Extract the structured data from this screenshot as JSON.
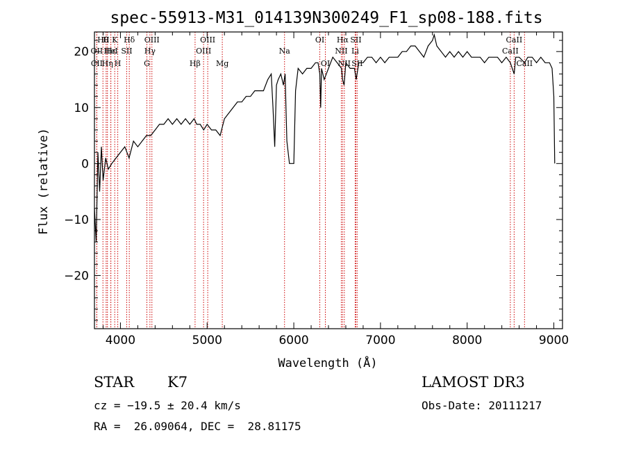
{
  "chart_data": {
    "type": "line",
    "title": "spec-55913-M31_014139N300249_F1_sp08-188.fits",
    "xlabel": "Wavelength (Å)",
    "ylabel": "Flux (relative)",
    "xlim": [
      3700,
      9100
    ],
    "ylim": [
      -29.5,
      23.5
    ],
    "xticks": [
      4000,
      5000,
      6000,
      7000,
      8000,
      9000
    ],
    "yticks": [
      -20,
      -10,
      0,
      10,
      20
    ],
    "spectrum": {
      "x": [
        3700,
        3720,
        3740,
        3760,
        3780,
        3800,
        3830,
        3860,
        3900,
        3950,
        4000,
        4050,
        4100,
        4150,
        4200,
        4250,
        4300,
        4350,
        4400,
        4450,
        4500,
        4550,
        4600,
        4650,
        4700,
        4750,
        4800,
        4850,
        4880,
        4920,
        4960,
        5000,
        5050,
        5100,
        5150,
        5200,
        5250,
        5300,
        5350,
        5400,
        5450,
        5500,
        5550,
        5600,
        5650,
        5700,
        5740,
        5760,
        5780,
        5800,
        5820,
        5850,
        5880,
        5900,
        5910,
        5920,
        5950,
        5960,
        5980,
        6000,
        6020,
        6050,
        6100,
        6150,
        6200,
        6250,
        6280,
        6300,
        6310,
        6320,
        6350,
        6400,
        6450,
        6500,
        6550,
        6563,
        6580,
        6600,
        6650,
        6700,
        6720,
        6750,
        6800,
        6850,
        6900,
        6950,
        7000,
        7050,
        7100,
        7150,
        7200,
        7250,
        7300,
        7350,
        7400,
        7450,
        7500,
        7550,
        7600,
        7620,
        7650,
        7700,
        7750,
        7800,
        7850,
        7900,
        7950,
        8000,
        8050,
        8100,
        8150,
        8200,
        8250,
        8300,
        8350,
        8400,
        8450,
        8498,
        8520,
        8542,
        8560,
        8600,
        8662,
        8700,
        8750,
        8800,
        8850,
        8900,
        8950,
        8980,
        9000,
        9010
      ],
      "y": [
        -8,
        -14,
        2,
        -5,
        3,
        -3,
        1,
        -1,
        0,
        1,
        2,
        3,
        1,
        4,
        3,
        4,
        5,
        5,
        6,
        7,
        7,
        8,
        7,
        8,
        7,
        8,
        7,
        8,
        7,
        7,
        6,
        7,
        6,
        6,
        5,
        8,
        9,
        10,
        11,
        11,
        12,
        12,
        13,
        13,
        13,
        15,
        16,
        10,
        3,
        14,
        15,
        16,
        14,
        16,
        10,
        4,
        0,
        0,
        0,
        0,
        13,
        17,
        16,
        17,
        17,
        18,
        18,
        16,
        10,
        17,
        15,
        17,
        19,
        18,
        17,
        15,
        14,
        18,
        17,
        17,
        15,
        18,
        18,
        19,
        19,
        18,
        19,
        18,
        19,
        19,
        19,
        20,
        20,
        21,
        21,
        20,
        19,
        21,
        22,
        23,
        21,
        20,
        19,
        20,
        19,
        20,
        19,
        20,
        19,
        19,
        19,
        18,
        19,
        19,
        19,
        18,
        19,
        18,
        17,
        16,
        19,
        19,
        18,
        19,
        19,
        18,
        19,
        18,
        18,
        17,
        12,
        0
      ]
    },
    "lines": [
      {
        "label": "Hθ",
        "wavelength": 3798,
        "row": 1
      },
      {
        "label": "OII",
        "wavelength": 3727,
        "row": 2
      },
      {
        "label": "CII",
        "wavelength": 3727,
        "row": 3
      },
      {
        "label": "H",
        "wavelength": 3835,
        "row": 1
      },
      {
        "label": "K",
        "wavelength": 3934,
        "row": 1
      },
      {
        "label": "Hε",
        "wavelength": 3889,
        "row": 2
      },
      {
        "label": "Hη",
        "wavelength": 3850,
        "row": 3
      },
      {
        "label": "HeI",
        "wavelength": 3889,
        "row": 2
      },
      {
        "label": "H",
        "wavelength": 3969,
        "row": 3
      },
      {
        "label": "Hδ",
        "wavelength": 4102,
        "row": 1
      },
      {
        "label": "SII",
        "wavelength": 4072,
        "row": 2
      },
      {
        "label": "OIII",
        "wavelength": 4363,
        "row": 1
      },
      {
        "label": "Hγ",
        "wavelength": 4340,
        "row": 2
      },
      {
        "label": "G",
        "wavelength": 4305,
        "row": 3
      },
      {
        "label": "Hβ",
        "wavelength": 4861,
        "row": 3
      },
      {
        "label": "OIII",
        "wavelength": 5007,
        "row": 1
      },
      {
        "label": "OIII",
        "wavelength": 4959,
        "row": 2
      },
      {
        "label": "Mg",
        "wavelength": 5175,
        "row": 3
      },
      {
        "label": "Na",
        "wavelength": 5893,
        "row": 2
      },
      {
        "label": "OI",
        "wavelength": 6300,
        "row": 1
      },
      {
        "label": "OI",
        "wavelength": 6364,
        "row": 3
      },
      {
        "label": "Hα",
        "wavelength": 6563,
        "row": 1
      },
      {
        "label": "SII",
        "wavelength": 6716,
        "row": 1
      },
      {
        "label": "NII",
        "wavelength": 6548,
        "row": 2
      },
      {
        "label": "Li",
        "wavelength": 6708,
        "row": 2
      },
      {
        "label": "NII",
        "wavelength": 6583,
        "row": 3
      },
      {
        "label": "SII",
        "wavelength": 6731,
        "row": 3
      },
      {
        "label": "CaII",
        "wavelength": 8542,
        "row": 1
      },
      {
        "label": "CaII",
        "wavelength": 8498,
        "row": 2
      },
      {
        "label": "CaII",
        "wavelength": 8662,
        "row": 3
      }
    ],
    "grid": false,
    "line_color": "#000000",
    "marker_color": "#cc0000"
  },
  "info": {
    "class": "STAR",
    "subclass": "K7",
    "survey": "LAMOST DR3",
    "cz": "cz = −19.5 ± 20.4 km/s",
    "obs_date": "Obs-Date: 20111217",
    "coords": "RA =  26.09064, DEC =  28.81175"
  }
}
